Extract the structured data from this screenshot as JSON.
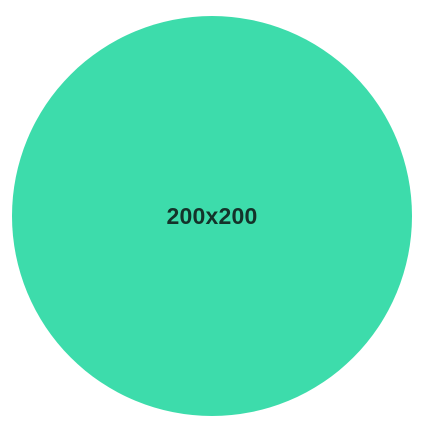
{
  "placeholder": {
    "label": "200x200",
    "fill_color": "#3ddcab",
    "text_color": "#14332a"
  }
}
